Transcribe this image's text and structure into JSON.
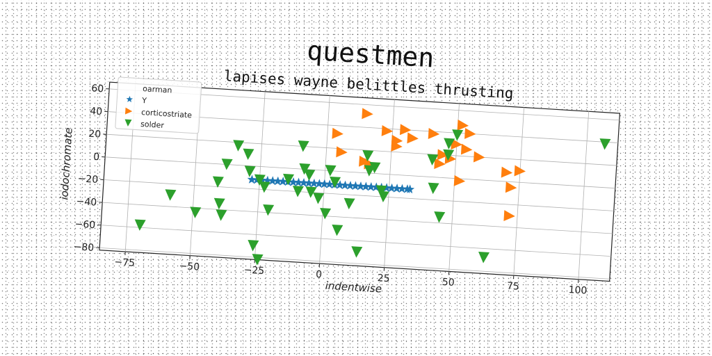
{
  "chart_data": {
    "type": "scatter",
    "title": "questmen",
    "subtitle": "lapises wayne belittles thrusting",
    "xlabel": "indentwise",
    "ylabel": "iodochromate",
    "xlim": [
      -85,
      112
    ],
    "ylim": [
      -82,
      66
    ],
    "xticks": [
      -75,
      -50,
      -25,
      0,
      25,
      50,
      75,
      100
    ],
    "yticks": [
      -80,
      -60,
      -40,
      -20,
      0,
      20,
      40,
      60
    ],
    "xtick_labels": [
      "−75",
      "−50",
      "−25",
      "0",
      "25",
      "50",
      "75",
      "100"
    ],
    "ytick_labels": [
      "−80",
      "−60",
      "−40",
      "−20",
      "0",
      "20",
      "40",
      "60"
    ],
    "grid": true,
    "legend_position": "top-left",
    "series": [
      {
        "name": "oarman",
        "marker": "none",
        "color": "#ffffff",
        "x": [],
        "y": []
      },
      {
        "name": "Y",
        "marker": "star",
        "color": "#1f77b4",
        "x": [
          -28,
          -26,
          -24,
          -22,
          -20,
          -18,
          -16,
          -14,
          -12,
          -10,
          -8,
          -6,
          -4,
          -2,
          0,
          2,
          4,
          6,
          8,
          10,
          12,
          14,
          16,
          18,
          20,
          22,
          24,
          26,
          28,
          30,
          32,
          33
        ],
        "y": [
          -12,
          -12,
          -12,
          -12,
          -12,
          -12,
          -12,
          -12,
          -12,
          -12,
          -12,
          -12,
          -12,
          -12,
          -12,
          -12,
          -12,
          -12,
          -12,
          -12,
          -12,
          -12,
          -12,
          -12,
          -12,
          -12,
          -12,
          -12,
          -12,
          -12,
          -12,
          -12
        ]
      },
      {
        "name": "corticostriate",
        "marker": "triangle-right",
        "color": "#ff7f0e",
        "x": [
          15,
          4,
          6,
          15,
          17,
          23,
          30,
          27,
          33,
          27,
          41,
          44,
          52,
          54,
          59,
          50,
          48,
          45,
          52,
          55,
          70,
          75,
          72,
          72
        ],
        "y": [
          52,
          33,
          17,
          10,
          8,
          38,
          40,
          30,
          33,
          25,
          38,
          12,
          47,
          26,
          20,
          30,
          17,
          20,
          -2,
          40,
          8,
          10,
          -5,
          -30
        ]
      },
      {
        "name": "solder",
        "marker": "triangle-down",
        "color": "#2ca02c",
        "x": [
          -70,
          -59,
          -49,
          -41,
          -40,
          -39,
          -38,
          -34,
          -30,
          -29,
          -25,
          -26,
          -24,
          -21,
          -14,
          -10,
          -9,
          -8,
          -6,
          -5,
          1,
          2,
          -2,
          4,
          6,
          10,
          14,
          16,
          17,
          19,
          22,
          23,
          41,
          42,
          45,
          47,
          47,
          50,
          63,
          107,
          -23
        ],
        "y": [
          -58,
          -30,
          -44,
          -16,
          -35,
          -45,
          0,
          17,
          10,
          -5,
          -12,
          -70,
          -82,
          -38,
          -10,
          -20,
          20,
          0,
          -5,
          -20,
          -38,
          0,
          -25,
          -10,
          -52,
          -28,
          -70,
          15,
          2,
          5,
          -15,
          -20,
          15,
          -10,
          -35,
          30,
          20,
          38,
          -68,
          38,
          -18
        ]
      }
    ]
  }
}
